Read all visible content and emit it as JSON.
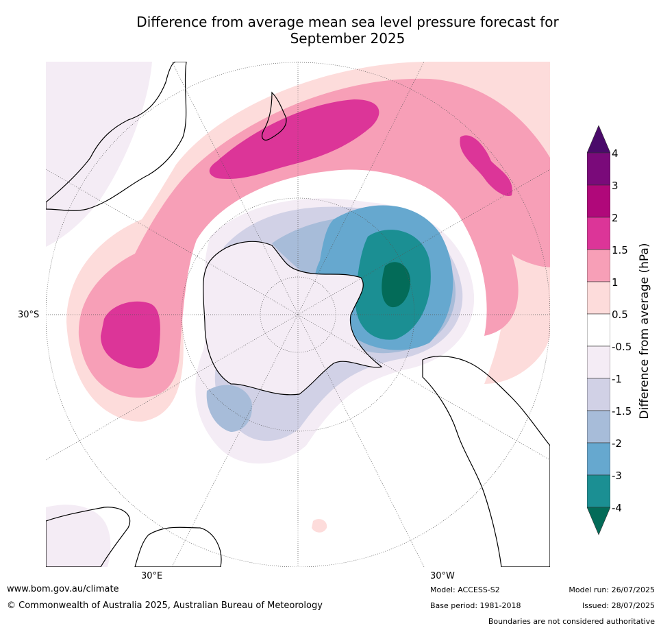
{
  "title_line1": "Difference from average mean sea level pressure forecast for",
  "title_line2": "September 2025",
  "axis_labels": {
    "left": "30°S",
    "bottom_left": "30°E",
    "bottom_right": "30°W"
  },
  "colorbar": {
    "label": "Difference from average (hPa)",
    "ticks": [
      "4",
      "3",
      "2",
      "1.5",
      "1",
      "0.5",
      "-0.5",
      "-1",
      "-1.5",
      "-2",
      "-3",
      "-4"
    ],
    "colors": {
      "gt4": "#4a0a6a",
      "c3_4": "#7a0a7a",
      "c2_3": "#b0087a",
      "c15_2": "#dc3598",
      "c1_15": "#f79fb7",
      "c05_1": "#fddcdb",
      "neutral": "#ffffff",
      "cm1_m05": "#f4ecf5",
      "cm15_m1": "#d1d1e6",
      "cm2_m15": "#a7bcd9",
      "cm3_m2": "#66a8cf",
      "cm4_m3": "#1b8f93",
      "ltm4": "#036b58"
    }
  },
  "footer": {
    "website": "www.bom.gov.au/climate",
    "copyright": "© Commonwealth of Australia 2025, Australian Bureau of Meteorology",
    "model": "Model: ACCESS-S2",
    "base_period": "Base period: 1981-2018",
    "model_run": "Model run: 26/07/2025",
    "issued": "Issued: 28/07/2025",
    "disclaimer": "Boundaries are not considered authoritative"
  }
}
